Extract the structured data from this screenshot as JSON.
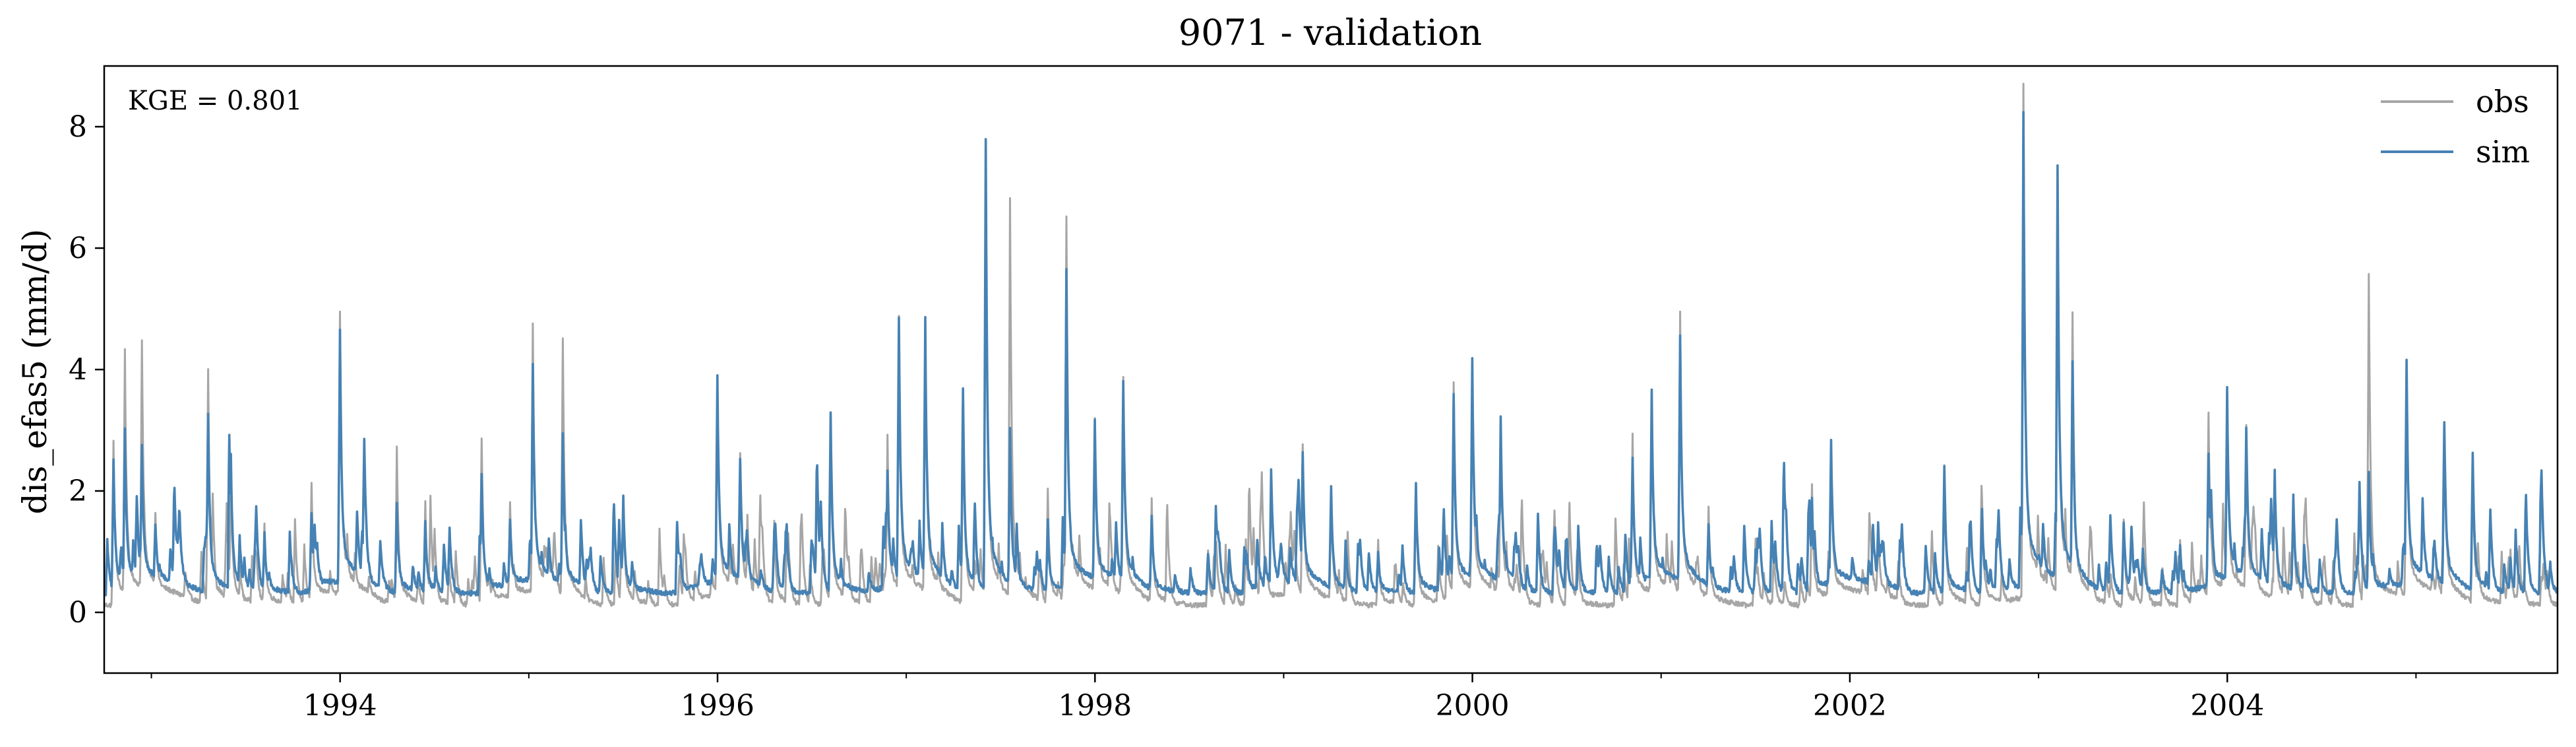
{
  "chart_data": {
    "type": "line",
    "title": "9071 - validation",
    "xlabel": "",
    "ylabel": "dis_efas5 (mm/d)",
    "annotation": "KGE = 0.801",
    "xlim": [
      1992.75,
      2005.75
    ],
    "ylim": [
      -1,
      9
    ],
    "x_ticks": [
      1994,
      1996,
      1998,
      2000,
      2002,
      2004
    ],
    "x_tick_labels": [
      "1994",
      "1996",
      "1998",
      "2000",
      "2002",
      "2004"
    ],
    "y_ticks": [
      0,
      2,
      4,
      6,
      8
    ],
    "y_tick_labels": [
      "0",
      "2",
      "4",
      "6",
      "8"
    ],
    "legend_position": "top-right",
    "grid": false,
    "series": [
      {
        "name": "obs",
        "color": "#a6a6a6",
        "baseline": 0.12,
        "peaks": [
          [
            1992.8,
            2.8
          ],
          [
            1992.86,
            4.3
          ],
          [
            1992.95,
            4.35
          ],
          [
            1993.02,
            1.5
          ],
          [
            1993.3,
            4.0
          ],
          [
            1993.42,
            2.3
          ],
          [
            1993.6,
            1.5
          ],
          [
            1993.85,
            2.1
          ],
          [
            1994.0,
            4.8
          ],
          [
            1994.3,
            2.7
          ],
          [
            1994.45,
            1.8
          ],
          [
            1994.75,
            2.9
          ],
          [
            1994.9,
            1.7
          ],
          [
            1995.02,
            4.6
          ],
          [
            1995.18,
            4.4
          ],
          [
            1995.5,
            1.9
          ],
          [
            1995.8,
            0.8
          ],
          [
            1996.0,
            3.7
          ],
          [
            1996.12,
            2.5
          ],
          [
            1996.3,
            1.5
          ],
          [
            1996.6,
            3.3
          ],
          [
            1996.9,
            2.8
          ],
          [
            1996.96,
            4.7
          ],
          [
            1997.1,
            4.6
          ],
          [
            1997.3,
            3.7
          ],
          [
            1997.42,
            7.6
          ],
          [
            1997.55,
            6.8
          ],
          [
            1997.75,
            2.0
          ],
          [
            1997.85,
            6.5
          ],
          [
            1998.0,
            3.0
          ],
          [
            1998.15,
            3.7
          ],
          [
            1998.3,
            1.9
          ],
          [
            1998.6,
            1.0
          ],
          [
            1998.8,
            1.2
          ],
          [
            1999.1,
            2.6
          ],
          [
            1999.25,
            2.0
          ],
          [
            1999.5,
            1.2
          ],
          [
            1999.7,
            2.1
          ],
          [
            1999.9,
            3.7
          ],
          [
            2000.0,
            3.9
          ],
          [
            2000.15,
            3.1
          ],
          [
            2000.5,
            1.2
          ],
          [
            2000.85,
            2.9
          ],
          [
            2000.95,
            3.5
          ],
          [
            2001.1,
            4.8
          ],
          [
            2001.25,
            1.7
          ],
          [
            2001.5,
            1.2
          ],
          [
            2001.8,
            2.1
          ],
          [
            2001.9,
            2.7
          ],
          [
            2002.15,
            1.3
          ],
          [
            2002.5,
            2.4
          ],
          [
            2002.7,
            1.9
          ],
          [
            2002.92,
            8.6
          ],
          [
            2003.1,
            7.2
          ],
          [
            2003.18,
            4.8
          ],
          [
            2003.45,
            1.5
          ],
          [
            2003.75,
            1.2
          ],
          [
            2003.9,
            3.2
          ],
          [
            2004.0,
            3.5
          ],
          [
            2004.1,
            2.9
          ],
          [
            2004.25,
            2.3
          ],
          [
            2004.35,
            1.9
          ],
          [
            2004.75,
            5.6
          ],
          [
            2004.95,
            4.0
          ],
          [
            2005.15,
            3.0
          ],
          [
            2005.3,
            2.5
          ],
          [
            2005.5,
            1.0
          ]
        ]
      },
      {
        "name": "sim",
        "color": "#4682b4",
        "baseline": 0.32,
        "peaks": [
          [
            1992.8,
            2.5
          ],
          [
            1992.86,
            3.0
          ],
          [
            1992.95,
            2.6
          ],
          [
            1993.02,
            1.3
          ],
          [
            1993.3,
            3.3
          ],
          [
            1993.42,
            2.6
          ],
          [
            1993.6,
            1.3
          ],
          [
            1993.85,
            1.6
          ],
          [
            1994.0,
            4.5
          ],
          [
            1994.3,
            1.8
          ],
          [
            1994.45,
            1.5
          ],
          [
            1994.75,
            2.3
          ],
          [
            1994.9,
            1.4
          ],
          [
            1995.02,
            3.9
          ],
          [
            1995.18,
            2.8
          ],
          [
            1995.5,
            1.9
          ],
          [
            1995.8,
            0.7
          ],
          [
            1996.0,
            3.7
          ],
          [
            1996.12,
            2.4
          ],
          [
            1996.3,
            1.3
          ],
          [
            1996.6,
            3.3
          ],
          [
            1996.9,
            2.2
          ],
          [
            1996.96,
            4.7
          ],
          [
            1997.1,
            4.7
          ],
          [
            1997.3,
            3.7
          ],
          [
            1997.42,
            7.8
          ],
          [
            1997.55,
            3.0
          ],
          [
            1997.75,
            1.5
          ],
          [
            1997.85,
            5.6
          ],
          [
            1998.0,
            3.0
          ],
          [
            1998.15,
            3.7
          ],
          [
            1998.3,
            1.6
          ],
          [
            1998.6,
            1.0
          ],
          [
            1998.8,
            1.0
          ],
          [
            1999.1,
            2.5
          ],
          [
            1999.25,
            2.0
          ],
          [
            1999.5,
            1.0
          ],
          [
            1999.7,
            2.1
          ],
          [
            1999.9,
            3.5
          ],
          [
            2000.0,
            4.0
          ],
          [
            2000.15,
            3.1
          ],
          [
            2000.5,
            1.2
          ],
          [
            2000.85,
            2.5
          ],
          [
            2000.95,
            3.5
          ],
          [
            2001.1,
            4.4
          ],
          [
            2001.25,
            1.4
          ],
          [
            2001.5,
            1.0
          ],
          [
            2001.8,
            1.9
          ],
          [
            2001.9,
            2.7
          ],
          [
            2002.15,
            1.3
          ],
          [
            2002.5,
            2.4
          ],
          [
            2002.7,
            1.7
          ],
          [
            2002.92,
            8.1
          ],
          [
            2003.1,
            7.2
          ],
          [
            2003.18,
            4.0
          ],
          [
            2003.45,
            1.5
          ],
          [
            2003.75,
            1.1
          ],
          [
            2003.9,
            2.5
          ],
          [
            2004.0,
            3.5
          ],
          [
            2004.1,
            2.9
          ],
          [
            2004.25,
            2.3
          ],
          [
            2004.35,
            1.9
          ],
          [
            2004.75,
            2.3
          ],
          [
            2004.95,
            4.0
          ],
          [
            2005.15,
            3.0
          ],
          [
            2005.3,
            2.6
          ],
          [
            2005.5,
            0.9
          ]
        ]
      }
    ]
  }
}
